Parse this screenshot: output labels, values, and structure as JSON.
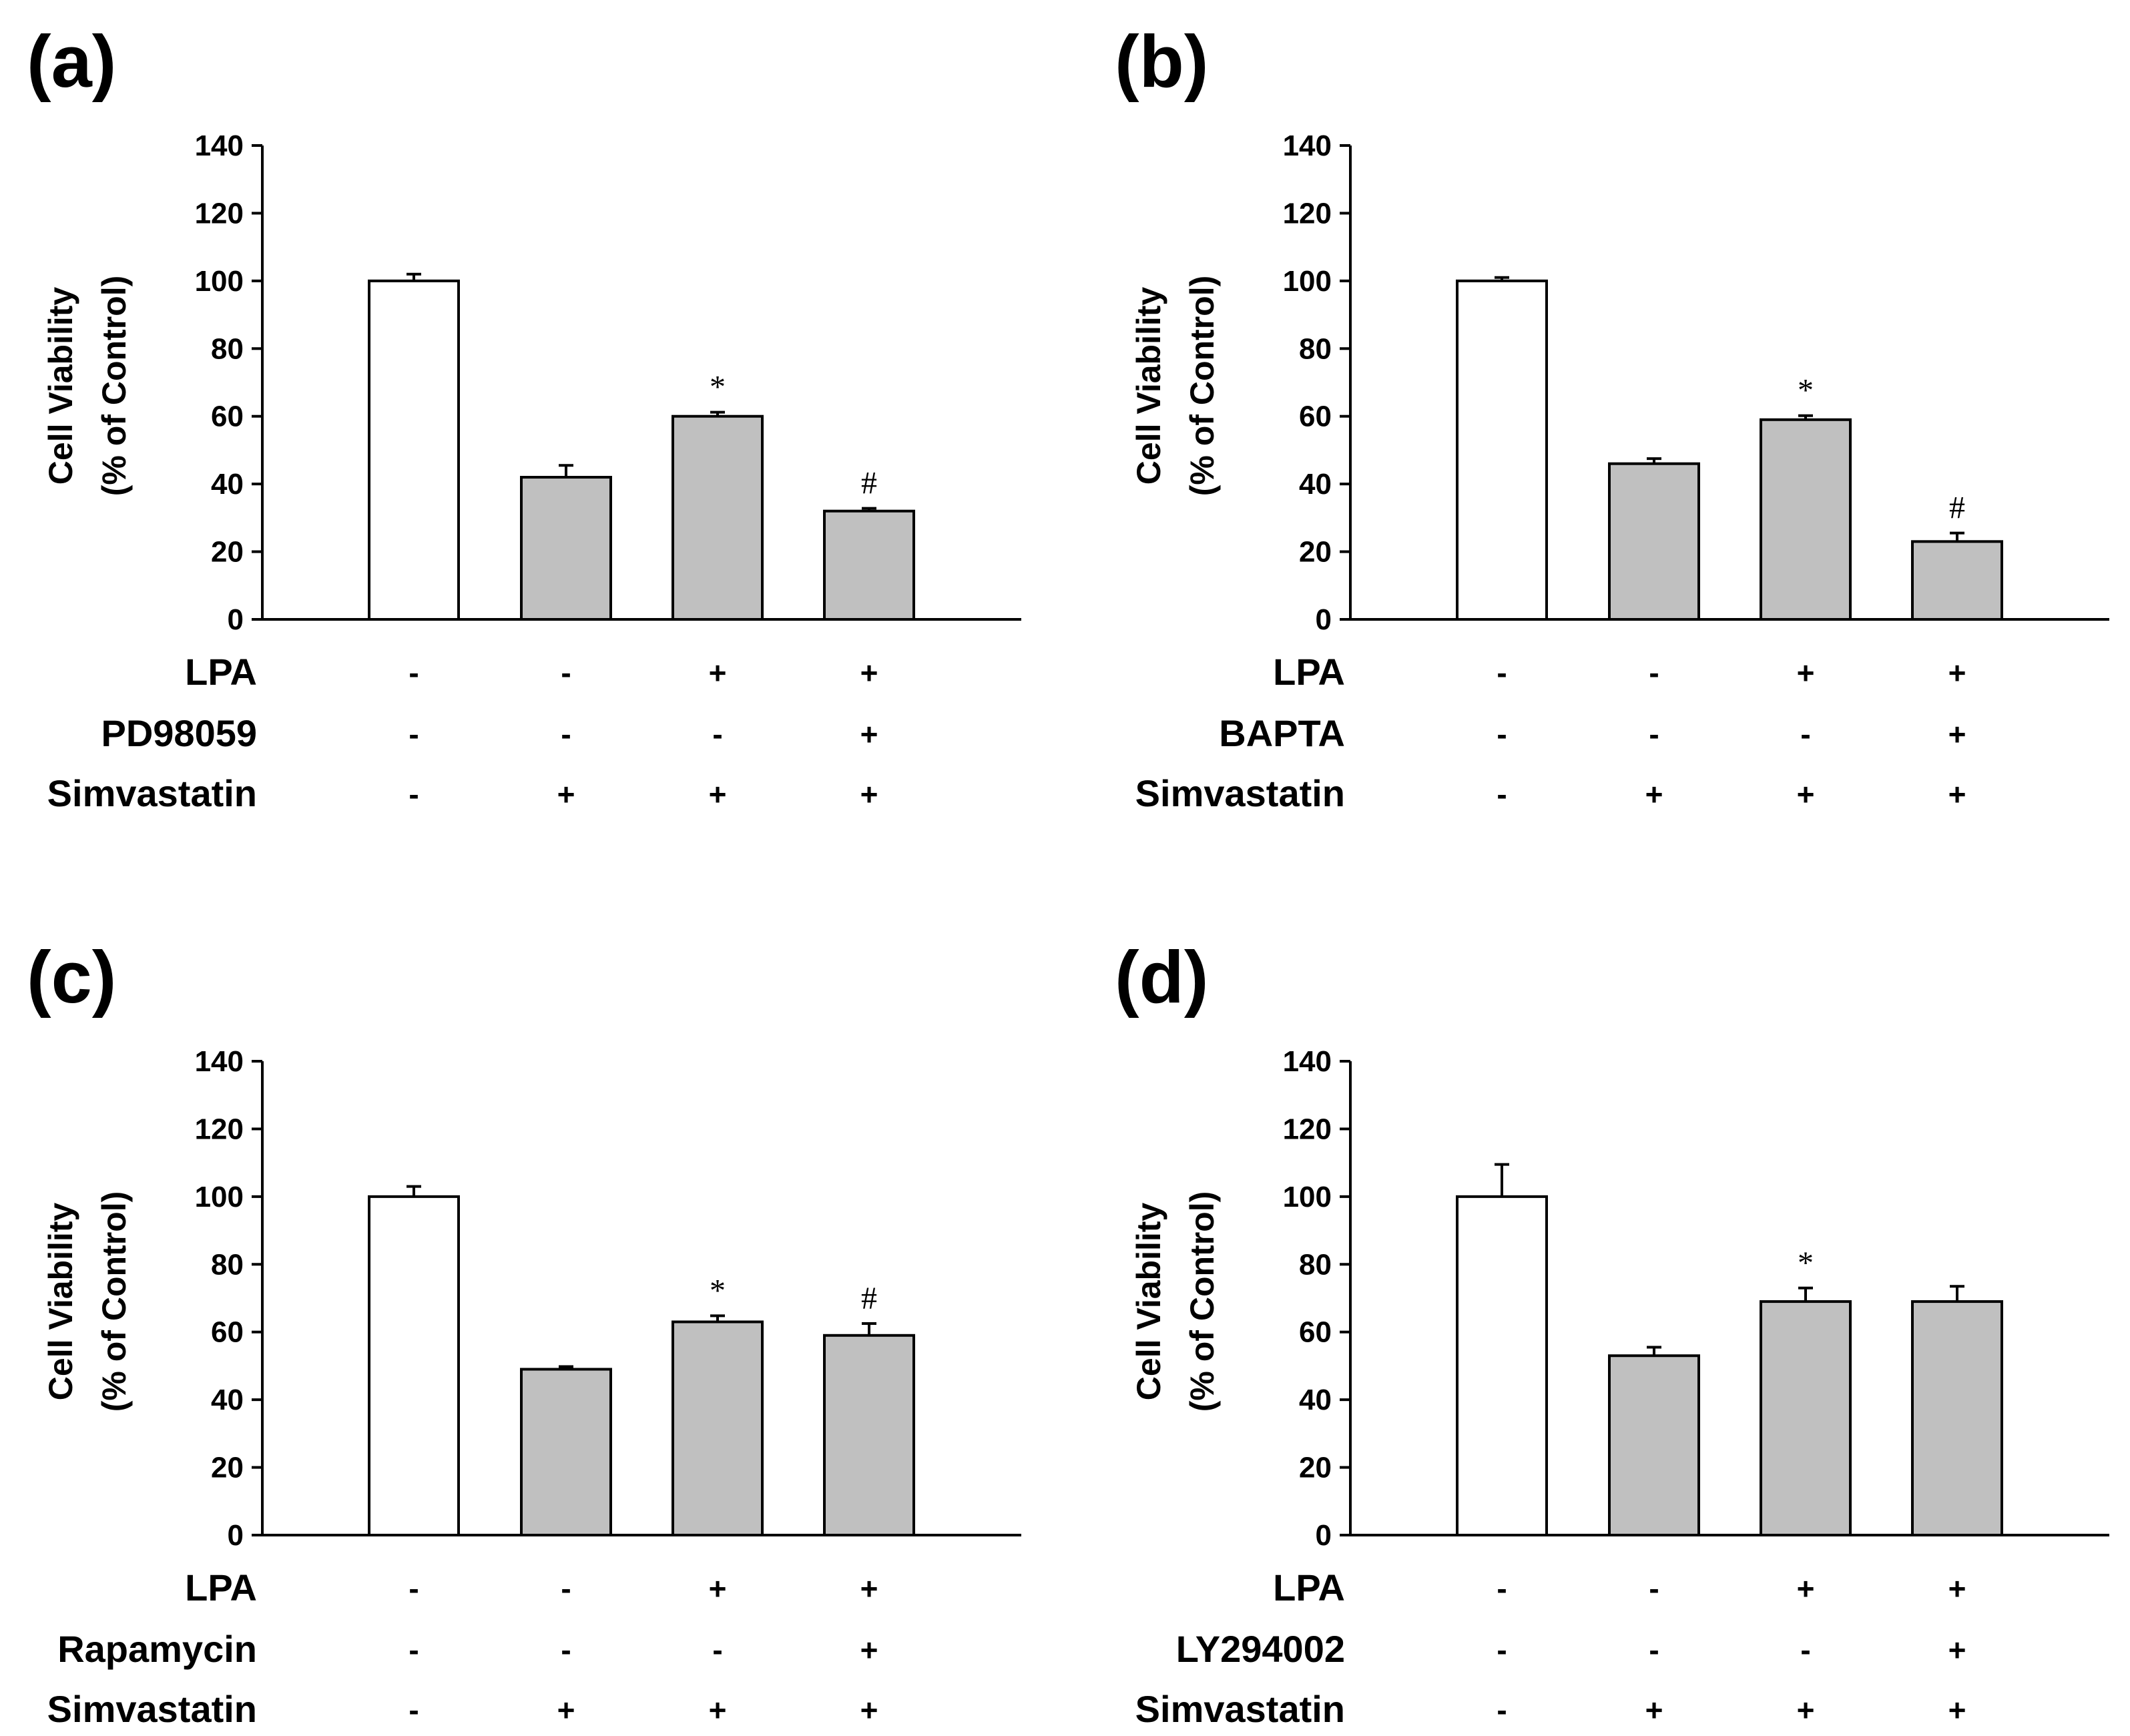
{
  "colors": {
    "control_bar": "#ffffff",
    "treatment_bar": "#c0c0c0",
    "stroke": "#000000"
  },
  "chart_data": [
    {
      "panel": "(a)",
      "type": "bar",
      "ylabel_lines": [
        "Cell Viability",
        "(% of Control)"
      ],
      "ylim": [
        0,
        140
      ],
      "yticks": [
        0,
        20,
        40,
        60,
        80,
        100,
        120,
        140
      ],
      "values": [
        100,
        42,
        60,
        32
      ],
      "errors": [
        2,
        3.5,
        1.2,
        0.8
      ],
      "annotations": [
        "",
        "",
        "*",
        "#"
      ],
      "rows": [
        {
          "label": "LPA",
          "signs": [
            "-",
            "-",
            "+",
            "+"
          ]
        },
        {
          "label": "PD98059",
          "signs": [
            "-",
            "-",
            "-",
            "+"
          ]
        },
        {
          "label": "Simvastatin",
          "signs": [
            "-",
            "+",
            "+",
            "+"
          ]
        }
      ]
    },
    {
      "panel": "(b)",
      "type": "bar",
      "ylabel_lines": [
        "Cell Viability",
        "(% of Control)"
      ],
      "ylim": [
        0,
        140
      ],
      "yticks": [
        0,
        20,
        40,
        60,
        80,
        100,
        120,
        140
      ],
      "values": [
        100,
        46,
        59,
        23
      ],
      "errors": [
        1,
        1.5,
        1.2,
        2.5
      ],
      "annotations": [
        "",
        "",
        "*",
        "#"
      ],
      "rows": [
        {
          "label": "LPA",
          "signs": [
            "-",
            "-",
            "+",
            "+"
          ]
        },
        {
          "label": "BAPTA",
          "signs": [
            "-",
            "-",
            "-",
            "+"
          ]
        },
        {
          "label": "Simvastatin",
          "signs": [
            "-",
            "+",
            "+",
            "+"
          ]
        }
      ]
    },
    {
      "panel": "(c)",
      "type": "bar",
      "ylabel_lines": [
        "Cell Viability",
        "(% of Control)"
      ],
      "ylim": [
        0,
        140
      ],
      "yticks": [
        0,
        20,
        40,
        60,
        80,
        100,
        120,
        140
      ],
      "values": [
        100,
        49,
        63,
        59
      ],
      "errors": [
        3,
        0.8,
        1.8,
        3.5
      ],
      "annotations": [
        "",
        "",
        "*",
        "#"
      ],
      "rows": [
        {
          "label": "LPA",
          "signs": [
            "-",
            "-",
            "+",
            "+"
          ]
        },
        {
          "label": "Rapamycin",
          "signs": [
            "-",
            "-",
            "-",
            "+"
          ]
        },
        {
          "label": "Simvastatin",
          "signs": [
            "-",
            "+",
            "+",
            "+"
          ]
        }
      ]
    },
    {
      "panel": "(d)",
      "type": "bar",
      "ylabel_lines": [
        "Cell Viability",
        "(% of Control)"
      ],
      "ylim": [
        0,
        140
      ],
      "yticks": [
        0,
        20,
        40,
        60,
        80,
        100,
        120,
        140
      ],
      "values": [
        100,
        53,
        69,
        69
      ],
      "errors": [
        9.5,
        2.5,
        4,
        4.5
      ],
      "annotations": [
        "",
        "",
        "*",
        ""
      ],
      "rows": [
        {
          "label": "LPA",
          "signs": [
            "-",
            "-",
            "+",
            "+"
          ]
        },
        {
          "label": "LY294002",
          "signs": [
            "-",
            "-",
            "-",
            "+"
          ]
        },
        {
          "label": "Simvastatin",
          "signs": [
            "-",
            "+",
            "+",
            "+"
          ]
        }
      ]
    }
  ]
}
